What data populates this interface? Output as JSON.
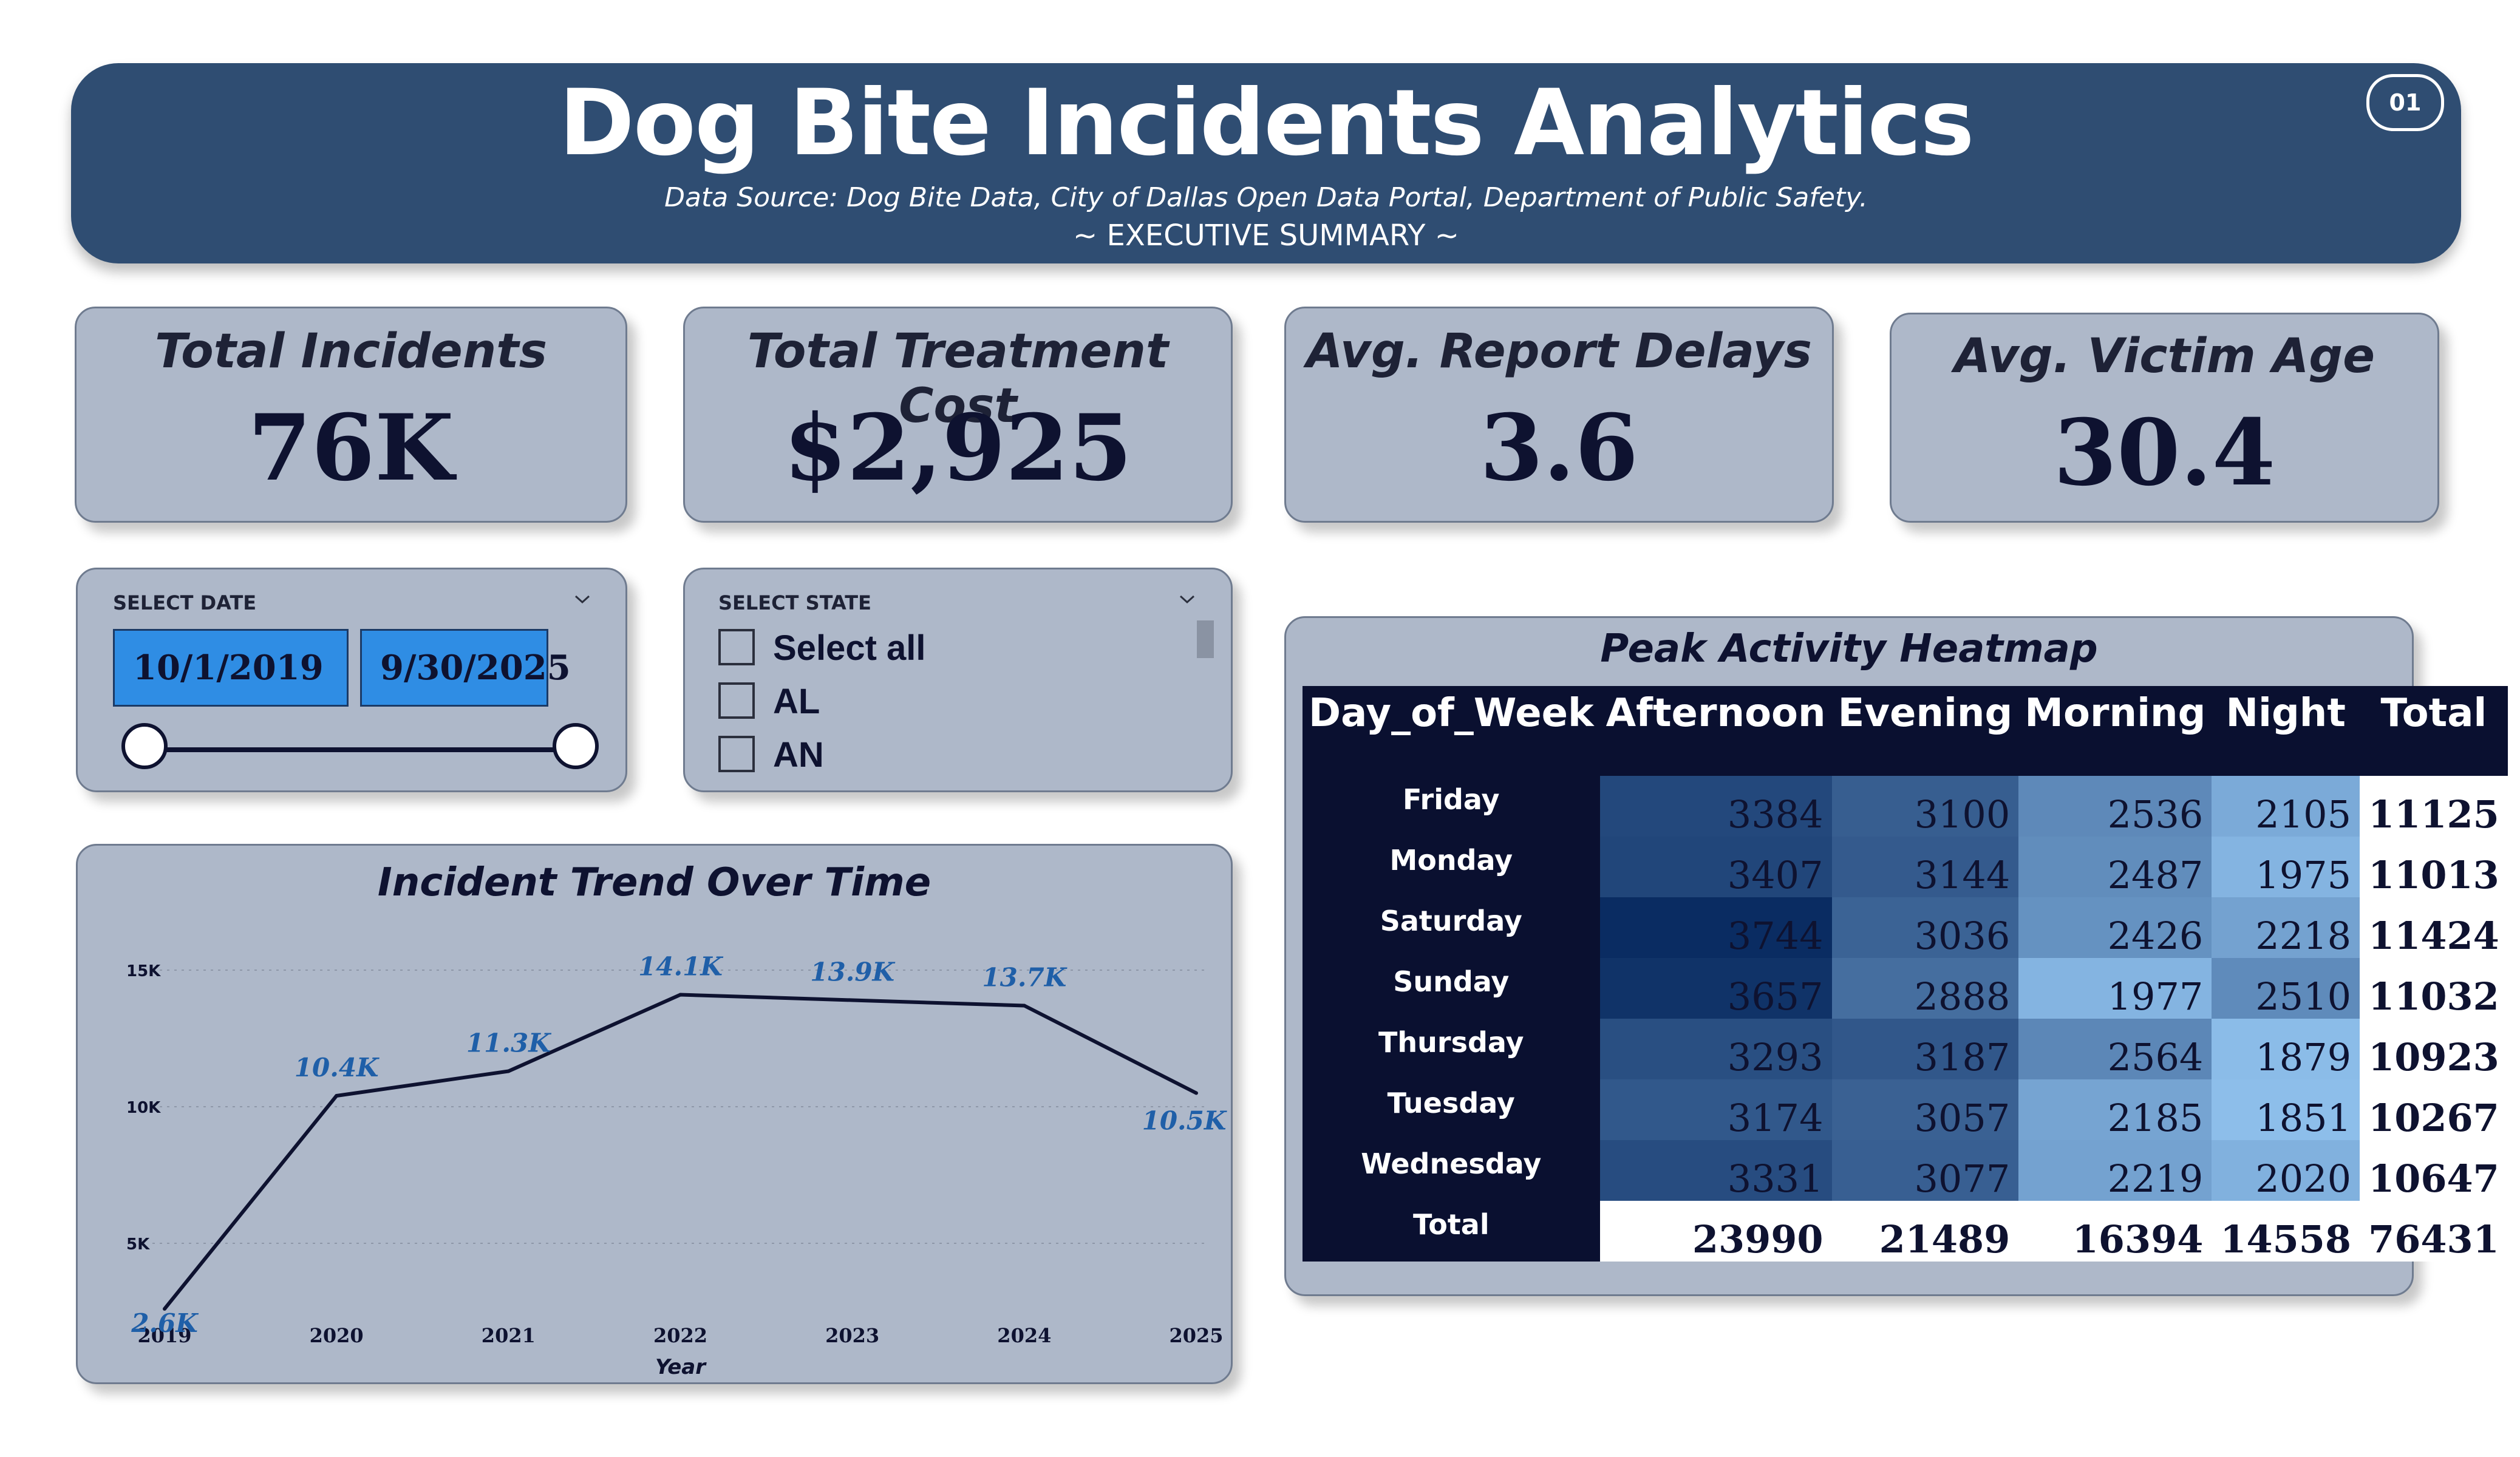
{
  "header": {
    "title": "Dog Bite Incidents Analytics",
    "source_label": "Data Source:",
    "source_text": "Dog Bite Data, City of Dallas Open Data Portal, Department of Public Safety.",
    "subtitle": "~ EXECUTIVE SUMMARY ~",
    "page_badge": "01"
  },
  "kpis": [
    {
      "label": "Total Incidents",
      "value": "76K"
    },
    {
      "label": "Total Treatment Cost",
      "value": "$2,925"
    },
    {
      "label": "Avg. Report Delays",
      "value": "3.6"
    },
    {
      "label": "Avg. Victim Age",
      "value": "30.4"
    }
  ],
  "date_slicer": {
    "label": "SELECT DATE",
    "start": "10/1/2019",
    "end": "9/30/2025"
  },
  "state_slicer": {
    "label": "SELECT STATE",
    "options": [
      "Select all",
      "AL",
      "AN"
    ]
  },
  "colors": {
    "header_bg": "#2f4d72",
    "card_bg": "#aeb8c9",
    "line": "#0e1230",
    "data_label": "#1f5fa8",
    "date_box": "#2f8de4"
  },
  "chart_data": [
    {
      "type": "line",
      "title": "Incident Trend Over Time",
      "xlabel": "Year",
      "ylabel": "",
      "x": [
        "2019",
        "2020",
        "2021",
        "2022",
        "2023",
        "2024",
        "2025"
      ],
      "values": [
        2600,
        10400,
        11300,
        14100,
        13900,
        13700,
        10500
      ],
      "data_labels": [
        "2.6K",
        "10.4K",
        "11.3K",
        "14.1K",
        "13.9K",
        "13.7K",
        "10.5K"
      ],
      "yticks": [
        "5K",
        "10K",
        "15K"
      ],
      "ytick_values": [
        5000,
        10000,
        15000
      ],
      "ylim": [
        2000,
        16000
      ],
      "grid": true
    },
    {
      "type": "heatmap",
      "title": "Peak Activity Heatmap",
      "columns": [
        "Day_of_Week",
        "Afternoon",
        "Evening",
        "Morning",
        "Night",
        "Total"
      ],
      "rows": [
        {
          "day": "Friday",
          "values": [
            3384,
            3100,
            2536,
            2105
          ],
          "total": 11125
        },
        {
          "day": "Monday",
          "values": [
            3407,
            3144,
            2487,
            1975
          ],
          "total": 11013
        },
        {
          "day": "Saturday",
          "values": [
            3744,
            3036,
            2426,
            2218
          ],
          "total": 11424
        },
        {
          "day": "Sunday",
          "values": [
            3657,
            2888,
            1977,
            2510
          ],
          "total": 11032
        },
        {
          "day": "Thursday",
          "values": [
            3293,
            3187,
            2564,
            1879
          ],
          "total": 10923
        },
        {
          "day": "Tuesday",
          "values": [
            3174,
            3057,
            2185,
            1851
          ],
          "total": 10267
        },
        {
          "day": "Wednesday",
          "values": [
            3331,
            3077,
            2219,
            2020
          ],
          "total": 10647
        }
      ],
      "total_row": {
        "label": "Total",
        "values": [
          23990,
          21489,
          16394,
          14558
        ],
        "total": 76431
      }
    }
  ]
}
